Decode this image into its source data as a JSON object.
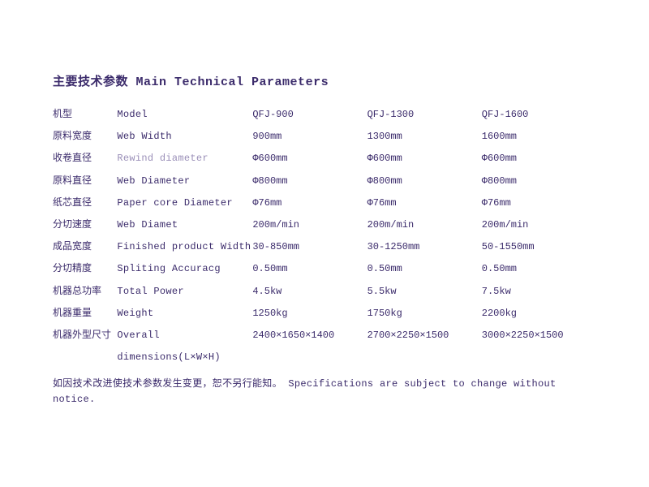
{
  "title": {
    "cn": "主要技术参数",
    "en": "Main Technical Parameters"
  },
  "columns": {
    "model_cn": "机型",
    "model_en": "Model",
    "m1": "QFJ-900",
    "m2": "QFJ-1300",
    "m3": "QFJ-1600"
  },
  "rows": [
    {
      "cn": "原料宽度",
      "en": "Web Width",
      "v1": "900mm",
      "v2": "1300mm",
      "v3": "1600mm"
    },
    {
      "cn": "收卷直径",
      "en": "Rewind diameter",
      "v1": "Φ600mm",
      "v2": "Φ600mm",
      "v3": "Φ600mm",
      "en_class": "rewind"
    },
    {
      "cn": "原料直径",
      "en": "Web Diameter",
      "v1": "Φ800mm",
      "v2": "Φ800mm",
      "v3": "Φ800mm"
    },
    {
      "cn": "纸芯直径",
      "en": "Paper core Diameter",
      "v1": "Φ76mm",
      "v2": "Φ76mm",
      "v3": "Φ76mm"
    },
    {
      "cn": "分切速度",
      "en": "Web Diamet",
      "v1": "200m/min",
      "v2": "200m/min",
      "v3": "200m/min"
    },
    {
      "cn": "成品宽度",
      "en": "Finished product Width",
      "v1": "30-850mm",
      "v2": "30-1250mm",
      "v3": "50-1550mm"
    },
    {
      "cn": "分切精度",
      "en": "Spliting Accuracg",
      "v1": "0.50mm",
      "v2": "0.50mm",
      "v3": "0.50mm"
    },
    {
      "cn": "机器总功率",
      "en": "Total Power",
      "v1": "4.5kw",
      "v2": "5.5kw",
      "v3": "7.5kw"
    },
    {
      "cn": "机器重量",
      "en": "Weight",
      "v1": "1250kg",
      "v2": "1750kg",
      "v3": "2200kg"
    },
    {
      "cn": "机器外型尺寸",
      "en": "Overall",
      "v1": "2400×1650×1400",
      "v2": "2700×2250×1500",
      "v3": "3000×2250×1500"
    }
  ],
  "dimensions_sub_en": "dimensions(L×W×H)",
  "footnote": {
    "cn": "如因技术改进使技术参数发生变更，恕不另行能知。",
    "en": "Specifications are subject to change without notice."
  },
  "colors": {
    "text": "#3b2b6b",
    "faded": "#9a8fb8",
    "background": "#ffffff"
  }
}
